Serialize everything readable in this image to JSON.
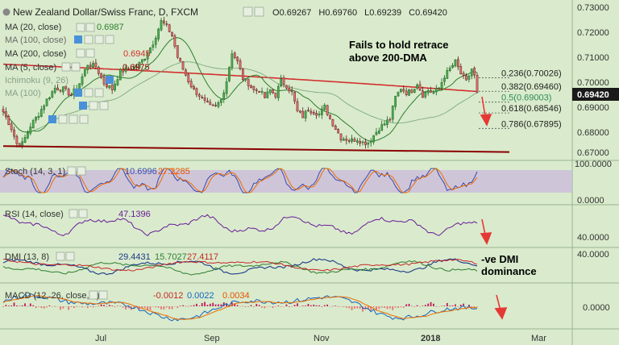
{
  "header": {
    "symbol": "New Zealand Dollar/Swiss Franc, D, FXCM",
    "ohlc": [
      {
        "label": "O",
        "value": "0.69267"
      },
      {
        "label": "H",
        "value": "0.69760"
      },
      {
        "label": "L",
        "value": "0.69239"
      },
      {
        "label": "C",
        "value": "0.69420"
      }
    ]
  },
  "indicators": {
    "ma20": {
      "label": "MA (20, close)",
      "value": "0.6987",
      "color": "#2e7d2e"
    },
    "ma100": {
      "label": "MA (100, close)",
      "value": "",
      "color": "#6a9a6a"
    },
    "ma200": {
      "label": "MA (200, close)",
      "value": "0.6945",
      "color": "#d32f2f"
    },
    "ma5": {
      "label": "MA (5, close)",
      "value": "0.6975",
      "color": "#8b0000"
    },
    "extra1": {
      "label": "Ichimoku (9, 26)"
    },
    "extra2": {
      "label": "MA (100)"
    }
  },
  "annotations": {
    "note1_line1": "Fails to hold retrace",
    "note1_line2": "above 200-DMA",
    "note2_line1": "-ve DMI",
    "note2_line2": "dominance"
  },
  "fib_levels": [
    {
      "label": "0.236(0.70026)",
      "value": 0.70026,
      "color": "#222222"
    },
    {
      "label": "0.382(0.69460)",
      "value": 0.6946,
      "color": "#222222"
    },
    {
      "label": "0.5(0.69003)",
      "value": 0.69003,
      "color": "#2e8b57"
    },
    {
      "label": "0.618(0.68546)",
      "value": 0.68546,
      "color": "#222222"
    },
    {
      "label": "0.786(0.67895)",
      "value": 0.67895,
      "color": "#222222"
    }
  ],
  "price_axis": {
    "ticks": [
      "0.73000",
      "0.72000",
      "0.71000",
      "0.70000",
      "0.69000",
      "0.68000",
      "0.67000"
    ],
    "current_price": "0.69420"
  },
  "time_axis": {
    "labels": [
      "Jul",
      "Sep",
      "Nov",
      "2018",
      "Mar"
    ]
  },
  "stoch": {
    "label": "Stoch (14, 3, 1)",
    "k": "10.6996",
    "d": "27.2285",
    "ticks": [
      "100.0000",
      "0.0000"
    ]
  },
  "rsi": {
    "label": "RSI (14, close)",
    "value": "47.1396",
    "ticks": [
      "40.0000"
    ]
  },
  "dmi": {
    "label": "DMI (13, 8)",
    "plus": "29.4431",
    "minus": "15.7027",
    "adx": "27.4117",
    "ticks": [
      "40.0000"
    ]
  },
  "macd": {
    "label": "MACD (12, 26, close, 9)",
    "hist": "-0.0012",
    "macd": "0.0022",
    "signal": "0.0034",
    "ticks": [
      "0.0000"
    ]
  },
  "colors": {
    "background": "#d9ebcc",
    "ma200": "#d32f2f",
    "ma20": "#2e7d2e",
    "support": "#8b0000",
    "arrow": "#e53935",
    "price_tag": "#1a1a1a",
    "stoch_band": "#c9b8dd"
  },
  "chart_data": {
    "type": "candlestick",
    "title": "New Zealand Dollar/Swiss Franc, D, FXCM",
    "ylim": [
      0.6665,
      0.731
    ],
    "x_labels": [
      "Jul",
      "Sep",
      "Nov",
      "2018",
      "Mar"
    ],
    "price_keypoints": [
      [
        0,
        0.686
      ],
      [
        3,
        0.679
      ],
      [
        5,
        0.6725
      ],
      [
        7,
        0.6725
      ],
      [
        10,
        0.68
      ],
      [
        13,
        0.685
      ],
      [
        16,
        0.691
      ],
      [
        19,
        0.696
      ],
      [
        22,
        0.6955
      ],
      [
        25,
        0.693
      ],
      [
        28,
        0.698
      ],
      [
        31,
        0.706
      ],
      [
        34,
        0.705
      ],
      [
        37,
        0.698
      ],
      [
        40,
        0.6955
      ],
      [
        43,
        0.703
      ],
      [
        46,
        0.704
      ],
      [
        49,
        0.705
      ],
      [
        52,
        0.709
      ],
      [
        55,
        0.715
      ],
      [
        58,
        0.724
      ],
      [
        60,
        0.722
      ],
      [
        62,
        0.718
      ],
      [
        64,
        0.709
      ],
      [
        66,
        0.704
      ],
      [
        68,
        0.699
      ],
      [
        70,
        0.695
      ],
      [
        72,
        0.693
      ],
      [
        74,
        0.69
      ],
      [
        76,
        0.688
      ],
      [
        78,
        0.688
      ],
      [
        80,
        0.691
      ],
      [
        82,
        0.699
      ],
      [
        84,
        0.711
      ],
      [
        86,
        0.707
      ],
      [
        88,
        0.7
      ],
      [
        90,
        0.698
      ],
      [
        92,
        0.695
      ],
      [
        94,
        0.695
      ],
      [
        96,
        0.692
      ],
      [
        98,
        0.695
      ],
      [
        100,
        0.693
      ],
      [
        102,
        0.699
      ],
      [
        104,
        0.697
      ],
      [
        106,
        0.694
      ],
      [
        108,
        0.686
      ],
      [
        110,
        0.684
      ],
      [
        112,
        0.687
      ],
      [
        114,
        0.686
      ],
      [
        116,
        0.685
      ],
      [
        118,
        0.688
      ],
      [
        120,
        0.683
      ],
      [
        122,
        0.679
      ],
      [
        124,
        0.675
      ],
      [
        126,
        0.6745
      ],
      [
        128,
        0.674
      ],
      [
        130,
        0.6745
      ],
      [
        132,
        0.673
      ],
      [
        134,
        0.673
      ],
      [
        136,
        0.676
      ],
      [
        138,
        0.679
      ],
      [
        140,
        0.681
      ],
      [
        142,
        0.683
      ],
      [
        144,
        0.692
      ],
      [
        146,
        0.696
      ],
      [
        148,
        0.694
      ],
      [
        150,
        0.695
      ],
      [
        152,
        0.698
      ],
      [
        154,
        0.693
      ],
      [
        156,
        0.695
      ],
      [
        158,
        0.694
      ],
      [
        160,
        0.696
      ],
      [
        162,
        0.701
      ],
      [
        164,
        0.704
      ],
      [
        166,
        0.707
      ],
      [
        168,
        0.702
      ],
      [
        170,
        0.6985
      ],
      [
        172,
        0.704
      ],
      [
        173,
        0.701
      ],
      [
        174,
        0.6942
      ]
    ],
    "ma200": {
      "name": "MA (200, close)",
      "from": 0.706,
      "to": 0.6945
    },
    "support": {
      "from": 0.6715,
      "to": 0.669
    },
    "ma20_last": 0.6987,
    "ma5_last": 0.6975
  }
}
